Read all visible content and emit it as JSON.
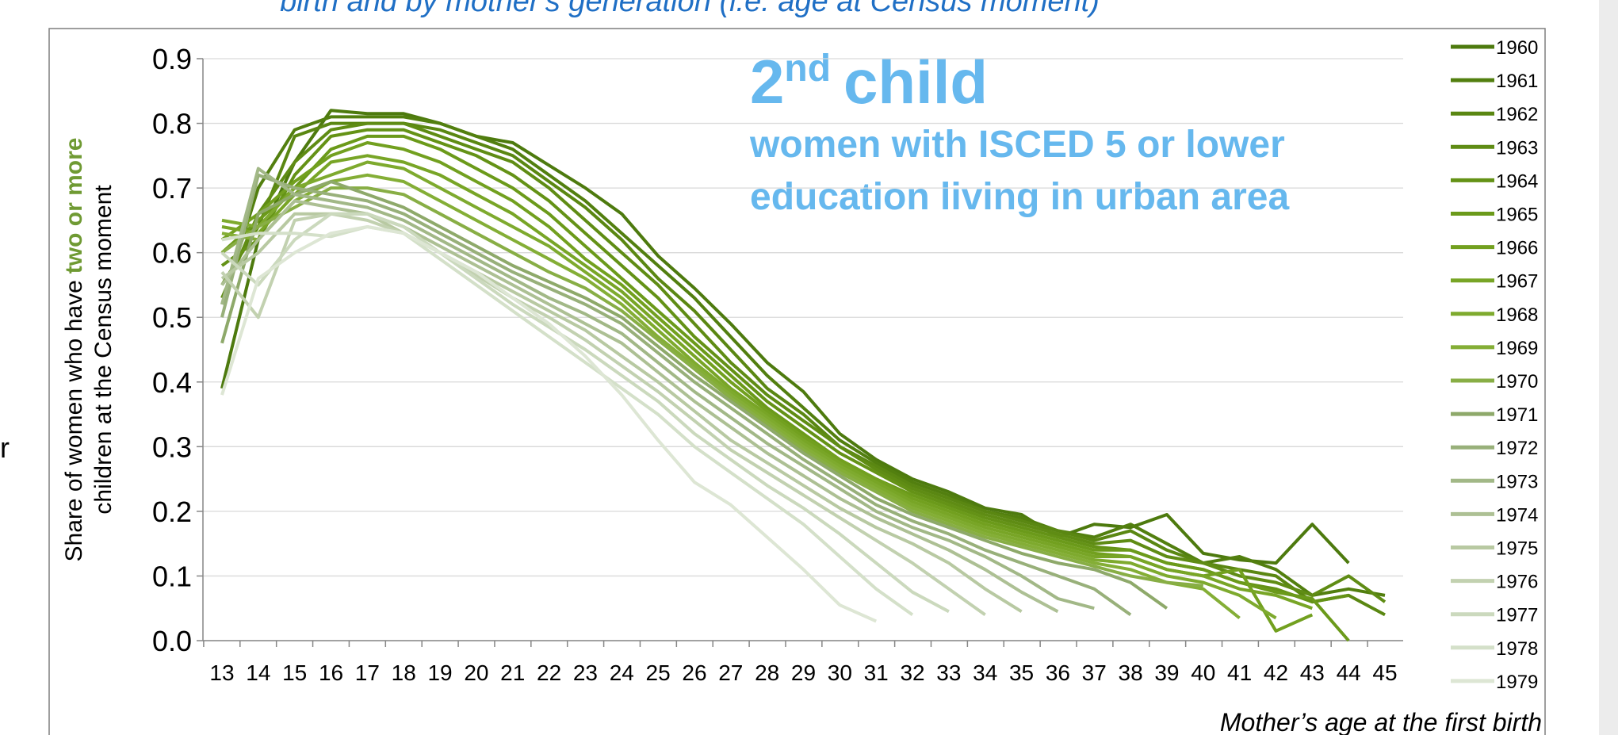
{
  "chart_data": {
    "type": "line",
    "title": "birth and by mother's generation (i.e. age at Census moment)",
    "side_text": "r",
    "annotation": {
      "main": "2",
      "sup": "nd",
      "rest": "child",
      "lines": [
        "women with ISCED 5 or lower",
        "education living in urban area"
      ]
    },
    "ylabel": {
      "line1": "Share of women who have",
      "highlight": "two or more",
      "line2": "children at the Census moment"
    },
    "xlabel": "Mother’s age at the first birth",
    "categories": [
      13,
      14,
      15,
      16,
      17,
      18,
      19,
      20,
      21,
      22,
      23,
      24,
      25,
      26,
      27,
      28,
      29,
      30,
      31,
      32,
      33,
      34,
      35,
      36,
      37,
      38,
      39,
      40,
      41,
      42,
      43,
      44,
      45
    ],
    "ylim": [
      0,
      0.9
    ],
    "yticks": [
      {
        "value": 0,
        "label": "0.0"
      },
      0.1,
      0.2,
      0.3,
      0.4,
      0.5,
      0.6,
      0.7,
      0.8,
      0.9
    ],
    "grid": true,
    "legend": "right",
    "series": [
      {
        "name": "1960",
        "color": "#4d7a0e",
        "values": [
          0.39,
          0.62,
          0.74,
          0.82,
          0.815,
          0.815,
          0.8,
          0.78,
          0.77,
          0.735,
          0.7,
          0.66,
          0.595,
          0.545,
          0.49,
          0.43,
          0.385,
          0.32,
          0.28,
          0.25,
          0.23,
          0.205,
          0.195,
          0.16,
          0.18,
          0.175,
          0.195,
          0.135,
          0.125,
          0.12,
          0.18,
          0.12,
          null
        ]
      },
      {
        "name": "1961",
        "color": "#527f0f",
        "values": [
          0.52,
          0.7,
          0.79,
          0.81,
          0.81,
          0.81,
          0.8,
          0.78,
          0.76,
          0.72,
          0.68,
          0.63,
          0.58,
          0.53,
          0.47,
          0.41,
          0.36,
          0.31,
          0.275,
          0.245,
          0.225,
          0.2,
          0.19,
          0.17,
          0.16,
          0.18,
          0.15,
          0.12,
          0.13,
          0.11,
          0.07,
          0.08,
          0.07
        ]
      },
      {
        "name": "1962",
        "color": "#5a8712",
        "values": [
          0.55,
          0.64,
          0.78,
          0.8,
          0.8,
          0.8,
          0.79,
          0.77,
          0.75,
          0.71,
          0.67,
          0.62,
          0.56,
          0.51,
          0.45,
          0.39,
          0.35,
          0.3,
          0.27,
          0.24,
          0.22,
          0.2,
          0.185,
          0.17,
          0.155,
          0.17,
          0.14,
          0.12,
          0.11,
          0.1,
          0.06,
          0.07,
          0.04
        ]
      },
      {
        "name": "1963",
        "color": "#5f8c14",
        "values": [
          0.53,
          0.66,
          0.74,
          0.79,
          0.8,
          0.8,
          0.78,
          0.76,
          0.74,
          0.7,
          0.65,
          0.6,
          0.55,
          0.49,
          0.43,
          0.38,
          0.34,
          0.3,
          0.265,
          0.235,
          0.215,
          0.195,
          0.18,
          0.165,
          0.15,
          0.155,
          0.13,
          0.12,
          0.1,
          0.09,
          0.07,
          0.1,
          0.06
        ]
      },
      {
        "name": "1964",
        "color": "#649216",
        "values": [
          0.58,
          0.62,
          0.72,
          0.78,
          0.79,
          0.79,
          0.77,
          0.75,
          0.72,
          0.68,
          0.63,
          0.58,
          0.53,
          0.47,
          0.42,
          0.37,
          0.33,
          0.29,
          0.26,
          0.23,
          0.21,
          0.19,
          0.175,
          0.16,
          0.145,
          0.14,
          0.12,
          0.11,
          0.09,
          0.08,
          0.06,
          0.07,
          null
        ]
      },
      {
        "name": "1965",
        "color": "#6b9a1a",
        "values": [
          0.6,
          0.65,
          0.7,
          0.76,
          0.78,
          0.78,
          0.76,
          0.73,
          0.7,
          0.66,
          0.61,
          0.56,
          0.51,
          0.46,
          0.41,
          0.36,
          0.32,
          0.28,
          0.25,
          0.225,
          0.205,
          0.185,
          0.17,
          0.155,
          0.14,
          0.14,
          0.12,
          0.11,
          0.09,
          0.075,
          0.065,
          0.0,
          null
        ]
      },
      {
        "name": "1966",
        "color": "#72a01f",
        "values": [
          0.62,
          0.66,
          0.71,
          0.75,
          0.77,
          0.76,
          0.74,
          0.71,
          0.68,
          0.64,
          0.59,
          0.55,
          0.5,
          0.45,
          0.4,
          0.355,
          0.315,
          0.28,
          0.25,
          0.22,
          0.2,
          0.18,
          0.165,
          0.15,
          0.135,
          0.13,
          0.11,
          0.1,
          0.11,
          0.015,
          0.04,
          null,
          null
        ]
      },
      {
        "name": "1967",
        "color": "#78a526",
        "values": [
          0.64,
          0.63,
          0.69,
          0.74,
          0.75,
          0.74,
          0.72,
          0.69,
          0.66,
          0.62,
          0.58,
          0.54,
          0.49,
          0.44,
          0.39,
          0.35,
          0.31,
          0.275,
          0.245,
          0.215,
          0.195,
          0.175,
          0.16,
          0.145,
          0.13,
          0.13,
          0.11,
          0.1,
          0.08,
          0.07,
          0.05,
          null,
          null
        ]
      },
      {
        "name": "1968",
        "color": "#7eaa2e",
        "values": [
          0.65,
          0.64,
          0.7,
          0.72,
          0.74,
          0.73,
          0.7,
          0.67,
          0.64,
          0.61,
          0.57,
          0.53,
          0.48,
          0.43,
          0.385,
          0.345,
          0.305,
          0.27,
          0.24,
          0.21,
          0.19,
          0.17,
          0.155,
          0.14,
          0.125,
          0.12,
          0.1,
          0.09,
          0.07,
          0.035,
          null,
          null,
          null
        ]
      },
      {
        "name": "1969",
        "color": "#84ae36",
        "values": [
          0.63,
          0.62,
          0.68,
          0.71,
          0.72,
          0.71,
          0.68,
          0.65,
          0.62,
          0.59,
          0.56,
          0.52,
          0.47,
          0.425,
          0.38,
          0.34,
          0.3,
          0.265,
          0.235,
          0.205,
          0.185,
          0.165,
          0.15,
          0.135,
          0.12,
          0.11,
          0.09,
          0.08,
          0.035,
          null,
          null,
          null,
          null
        ]
      },
      {
        "name": "1970",
        "color": "#88ae45",
        "values": [
          0.6,
          0.64,
          0.67,
          0.7,
          0.7,
          0.69,
          0.66,
          0.63,
          0.6,
          0.57,
          0.545,
          0.51,
          0.465,
          0.42,
          0.375,
          0.335,
          0.295,
          0.26,
          0.23,
          0.2,
          0.18,
          0.16,
          0.145,
          0.13,
          0.115,
          0.1,
          0.09,
          0.085,
          null,
          null,
          null,
          null,
          null
        ]
      },
      {
        "name": "1971",
        "color": "#8ea96a",
        "values": [
          0.46,
          0.66,
          0.69,
          0.71,
          0.69,
          0.67,
          0.64,
          0.61,
          0.58,
          0.555,
          0.53,
          0.5,
          0.455,
          0.41,
          0.37,
          0.33,
          0.29,
          0.255,
          0.22,
          0.195,
          0.175,
          0.155,
          0.135,
          0.12,
          0.11,
          0.09,
          0.05,
          null,
          null,
          null,
          null,
          null,
          null
        ]
      },
      {
        "name": "1972",
        "color": "#98b07a",
        "values": [
          0.5,
          0.72,
          0.7,
          0.69,
          0.68,
          0.66,
          0.63,
          0.6,
          0.57,
          0.545,
          0.52,
          0.49,
          0.445,
          0.4,
          0.36,
          0.32,
          0.28,
          0.245,
          0.21,
          0.185,
          0.165,
          0.14,
          0.12,
          0.1,
          0.08,
          0.04,
          null,
          null,
          null,
          null,
          null,
          null,
          null
        ]
      },
      {
        "name": "1973",
        "color": "#a2b887",
        "values": [
          0.52,
          0.73,
          0.69,
          0.68,
          0.67,
          0.65,
          0.62,
          0.59,
          0.56,
          0.53,
          0.505,
          0.475,
          0.43,
          0.385,
          0.345,
          0.305,
          0.27,
          0.235,
          0.2,
          0.175,
          0.155,
          0.13,
          0.1,
          0.065,
          0.05,
          null,
          null,
          null,
          null,
          null,
          null,
          null,
          null
        ]
      },
      {
        "name": "1974",
        "color": "#adc094",
        "values": [
          0.55,
          0.62,
          0.68,
          0.67,
          0.66,
          0.64,
          0.61,
          0.58,
          0.55,
          0.52,
          0.49,
          0.46,
          0.415,
          0.37,
          0.33,
          0.29,
          0.255,
          0.22,
          0.19,
          0.165,
          0.14,
          0.11,
          0.075,
          0.045,
          null,
          null,
          null,
          null,
          null,
          null,
          null,
          null,
          null
        ]
      },
      {
        "name": "1975",
        "color": "#b8c9a2",
        "values": [
          0.56,
          0.6,
          0.66,
          0.66,
          0.66,
          0.63,
          0.6,
          0.57,
          0.54,
          0.51,
          0.48,
          0.44,
          0.4,
          0.355,
          0.31,
          0.275,
          0.24,
          0.205,
          0.175,
          0.15,
          0.12,
          0.08,
          0.045,
          null,
          null,
          null,
          null,
          null,
          null,
          null,
          null,
          null,
          null
        ]
      },
      {
        "name": "1976",
        "color": "#c2d1b0",
        "values": [
          0.57,
          0.5,
          0.65,
          0.66,
          0.65,
          0.63,
          0.6,
          0.565,
          0.53,
          0.5,
          0.465,
          0.425,
          0.385,
          0.34,
          0.295,
          0.26,
          0.225,
          0.19,
          0.155,
          0.12,
          0.08,
          0.04,
          null,
          null,
          null,
          null,
          null,
          null,
          null,
          null,
          null,
          null,
          null
        ]
      },
      {
        "name": "1977",
        "color": "#cbd9bd",
        "values": [
          0.6,
          0.55,
          0.62,
          0.66,
          0.66,
          0.64,
          0.6,
          0.56,
          0.52,
          0.485,
          0.45,
          0.41,
          0.37,
          0.32,
          0.28,
          0.24,
          0.205,
          0.165,
          0.12,
          0.075,
          0.045,
          null,
          null,
          null,
          null,
          null,
          null,
          null,
          null,
          null,
          null,
          null,
          null
        ]
      },
      {
        "name": "1978",
        "color": "#d4e0c9",
        "values": [
          0.62,
          0.63,
          0.63,
          0.625,
          0.64,
          0.63,
          0.59,
          0.55,
          0.51,
          0.47,
          0.43,
          0.39,
          0.35,
          0.3,
          0.26,
          0.22,
          0.18,
          0.13,
          0.08,
          0.04,
          null,
          null,
          null,
          null,
          null,
          null,
          null,
          null,
          null,
          null,
          null,
          null,
          null
        ]
      },
      {
        "name": "1979",
        "color": "#dde6d4",
        "values": [
          0.38,
          0.56,
          0.6,
          0.63,
          0.64,
          0.63,
          0.6,
          0.57,
          0.53,
          0.49,
          0.44,
          0.38,
          0.31,
          0.245,
          0.21,
          0.16,
          0.11,
          0.055,
          0.03,
          null,
          null,
          null,
          null,
          null,
          null,
          null,
          null,
          null,
          null,
          null,
          null,
          null,
          null
        ]
      }
    ]
  }
}
